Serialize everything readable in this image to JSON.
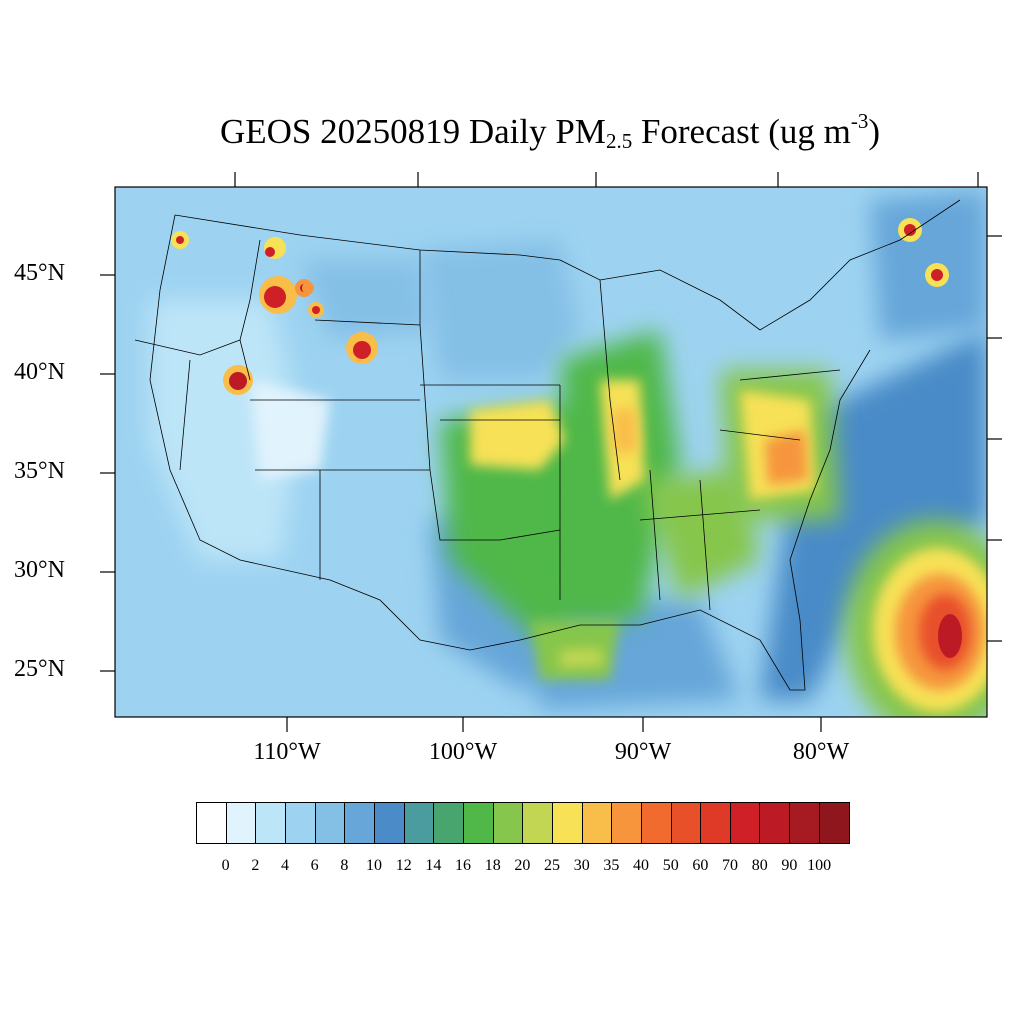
{
  "title": {
    "prefix": "GEOS 20250819 Daily PM",
    "subscript": "2.5",
    "middle": " Forecast (ug m",
    "superscript": "-3",
    "suffix": ")"
  },
  "map": {
    "projection": "lambert-conformal",
    "region": "CONUS",
    "variable": "PM2.5",
    "background_color": "#9dd3f1",
    "latitude_labels": [
      "45°N",
      "40°N",
      "35°N",
      "30°N",
      "25°N"
    ],
    "longitude_labels": [
      "110°W",
      "100°W",
      "90°W",
      "80°W"
    ]
  },
  "colorbar": {
    "colors": [
      "#ffffff",
      "#e1f3fc",
      "#bde5f8",
      "#9dd3f1",
      "#84bfe6",
      "#66a6d9",
      "#4a8bc8",
      "#4a9c9f",
      "#49a56e",
      "#4fb849",
      "#86c64c",
      "#c3d653",
      "#f7e157",
      "#f9bd4a",
      "#f6953c",
      "#f16b2e",
      "#e8502a",
      "#df3a28",
      "#d02027",
      "#bc1b25",
      "#a61a21",
      "#8f161c"
    ],
    "labels": [
      "0",
      "2",
      "4",
      "6",
      "8",
      "10",
      "12",
      "14",
      "16",
      "18",
      "20",
      "25",
      "30",
      "35",
      "40",
      "50",
      "60",
      "70",
      "80",
      "90",
      "100"
    ]
  }
}
